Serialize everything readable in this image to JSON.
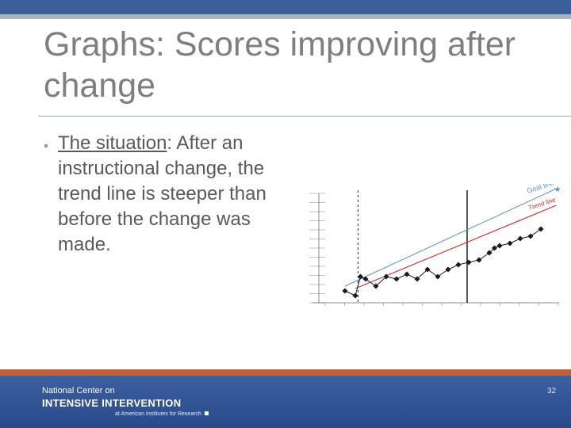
{
  "slide": {
    "title": "Graphs: Scores improving after change",
    "bullet": {
      "lead": "The situation",
      "rest": ": After an instructional change, the trend line is steeper than before the change was made."
    },
    "page_number": "32"
  },
  "footer": {
    "line1": "National Center on",
    "line2": "INTENSIVE INTERVENTION",
    "line3": "at American Institutes for Research"
  },
  "chart_data": {
    "type": "line",
    "title": "",
    "series_labels": {
      "goal": "Goal line",
      "trend": "Trend line"
    },
    "colors": {
      "goal": "#5b8fc9",
      "trend": "#d93030",
      "data": "#1a1a1a"
    },
    "intervention_marker_x": 12,
    "baseline_marker_x": 1.5,
    "x_max": 20,
    "data_points": [
      [
        0,
        2.5
      ],
      [
        1,
        1.5
      ],
      [
        1.5,
        5.5
      ],
      [
        2,
        5.0
      ],
      [
        3,
        3.5
      ],
      [
        4,
        5.5
      ],
      [
        5,
        5.0
      ],
      [
        6,
        6.0
      ],
      [
        7,
        5.0
      ],
      [
        8,
        7.0
      ],
      [
        9,
        5.5
      ],
      [
        10,
        7.0
      ],
      [
        11,
        8.0
      ],
      [
        12,
        8.5
      ],
      [
        13,
        9.0
      ],
      [
        14,
        10.5
      ],
      [
        14.5,
        11.5
      ],
      [
        15,
        12.0
      ],
      [
        16,
        12.5
      ],
      [
        17,
        13.5
      ],
      [
        18,
        14.0
      ],
      [
        19,
        15.5
      ]
    ],
    "goal_line": [
      [
        0,
        3.5
      ],
      [
        20.5,
        24.0
      ]
    ],
    "trend_line": [
      [
        1,
        3.0
      ],
      [
        20.5,
        20.5
      ]
    ]
  }
}
